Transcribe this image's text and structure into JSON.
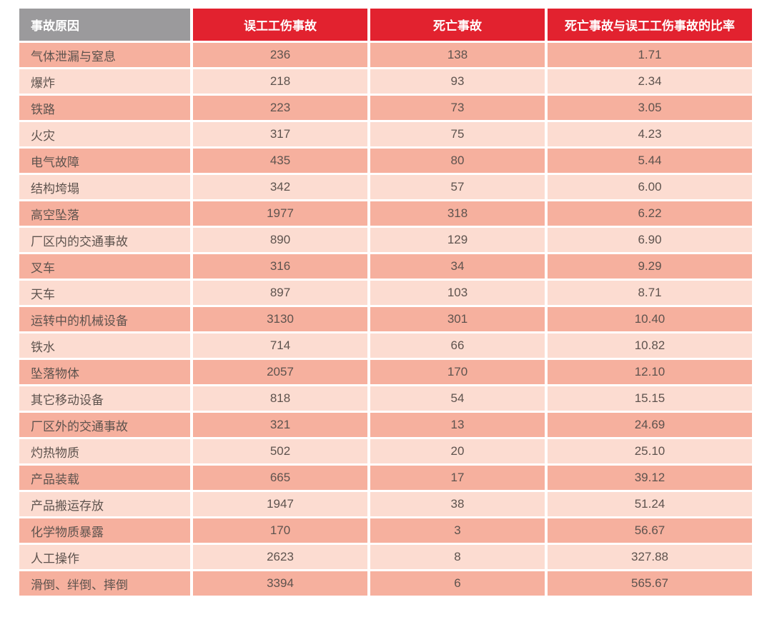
{
  "table": {
    "columns": [
      {
        "label": "事故原因"
      },
      {
        "label": "误工工伤事故"
      },
      {
        "label": "死亡事故"
      },
      {
        "label": "死亡事故与误工工伤事故的比率"
      }
    ],
    "rows": [
      {
        "cause": "气体泄漏与窒息",
        "lost_time_injuries": "236",
        "fatalities": "138",
        "ratio": "1.71"
      },
      {
        "cause": "爆炸",
        "lost_time_injuries": "218",
        "fatalities": "93",
        "ratio": "2.34"
      },
      {
        "cause": "铁路",
        "lost_time_injuries": "223",
        "fatalities": "73",
        "ratio": "3.05"
      },
      {
        "cause": "火灾",
        "lost_time_injuries": "317",
        "fatalities": "75",
        "ratio": "4.23"
      },
      {
        "cause": "电气故障",
        "lost_time_injuries": "435",
        "fatalities": "80",
        "ratio": "5.44"
      },
      {
        "cause": "结构垮塌",
        "lost_time_injuries": "342",
        "fatalities": "57",
        "ratio": "6.00"
      },
      {
        "cause": "高空坠落",
        "lost_time_injuries": "1977",
        "fatalities": "318",
        "ratio": "6.22"
      },
      {
        "cause": "厂区内的交通事故",
        "lost_time_injuries": "890",
        "fatalities": "129",
        "ratio": "6.90"
      },
      {
        "cause": "叉车",
        "lost_time_injuries": "316",
        "fatalities": "34",
        "ratio": "9.29"
      },
      {
        "cause": "天车",
        "lost_time_injuries": "897",
        "fatalities": "103",
        "ratio": "8.71"
      },
      {
        "cause": "运转中的机械设备",
        "lost_time_injuries": "3130",
        "fatalities": "301",
        "ratio": "10.40"
      },
      {
        "cause": "铁水",
        "lost_time_injuries": "714",
        "fatalities": "66",
        "ratio": "10.82"
      },
      {
        "cause": "坠落物体",
        "lost_time_injuries": "2057",
        "fatalities": "170",
        "ratio": "12.10"
      },
      {
        "cause": "其它移动设备",
        "lost_time_injuries": "818",
        "fatalities": "54",
        "ratio": "15.15"
      },
      {
        "cause": "厂区外的交通事故",
        "lost_time_injuries": "321",
        "fatalities": "13",
        "ratio": "24.69"
      },
      {
        "cause": "灼热物质",
        "lost_time_injuries": "502",
        "fatalities": "20",
        "ratio": "25.10"
      },
      {
        "cause": "产品装载",
        "lost_time_injuries": "665",
        "fatalities": "17",
        "ratio": "39.12"
      },
      {
        "cause": "产品搬运存放",
        "lost_time_injuries": "1947",
        "fatalities": "38",
        "ratio": "51.24"
      },
      {
        "cause": "化学物质暴露",
        "lost_time_injuries": "170",
        "fatalities": "3",
        "ratio": "56.67"
      },
      {
        "cause": "人工操作",
        "lost_time_injuries": "2623",
        "fatalities": "8",
        "ratio": "327.88"
      },
      {
        "cause": "滑倒、绊倒、摔倒",
        "lost_time_injuries": "3394",
        "fatalities": "6",
        "ratio": "565.67"
      }
    ]
  },
  "colors": {
    "header_gray": "#9b9a9c",
    "header_red": "#e2222f",
    "row_dark_pink": "#f6b09e",
    "row_light_pink": "#fcdcd1",
    "cell_text": "#5e534e",
    "header_text": "#ffffff"
  },
  "chart_data": {
    "type": "table",
    "title": "",
    "columns": [
      "事故原因",
      "误工工伤事故",
      "死亡事故",
      "死亡事故与误工工伤事故的比率"
    ],
    "rows": [
      [
        "气体泄漏与窒息",
        236,
        138,
        1.71
      ],
      [
        "爆炸",
        218,
        93,
        2.34
      ],
      [
        "铁路",
        223,
        73,
        3.05
      ],
      [
        "火灾",
        317,
        75,
        4.23
      ],
      [
        "电气故障",
        435,
        80,
        5.44
      ],
      [
        "结构垮塌",
        342,
        57,
        6.0
      ],
      [
        "高空坠落",
        1977,
        318,
        6.22
      ],
      [
        "厂区内的交通事故",
        890,
        129,
        6.9
      ],
      [
        "叉车",
        316,
        34,
        9.29
      ],
      [
        "天车",
        897,
        103,
        8.71
      ],
      [
        "运转中的机械设备",
        3130,
        301,
        10.4
      ],
      [
        "铁水",
        714,
        66,
        10.82
      ],
      [
        "坠落物体",
        2057,
        170,
        12.1
      ],
      [
        "其它移动设备",
        818,
        54,
        15.15
      ],
      [
        "厂区外的交通事故",
        321,
        13,
        24.69
      ],
      [
        "灼热物质",
        502,
        20,
        25.1
      ],
      [
        "产品装载",
        665,
        17,
        39.12
      ],
      [
        "产品搬运存放",
        1947,
        38,
        51.24
      ],
      [
        "化学物质暴露",
        170,
        3,
        56.67
      ],
      [
        "人工操作",
        2623,
        8,
        327.88
      ],
      [
        "滑倒、绊倒、摔倒",
        3394,
        6,
        565.67
      ]
    ]
  }
}
